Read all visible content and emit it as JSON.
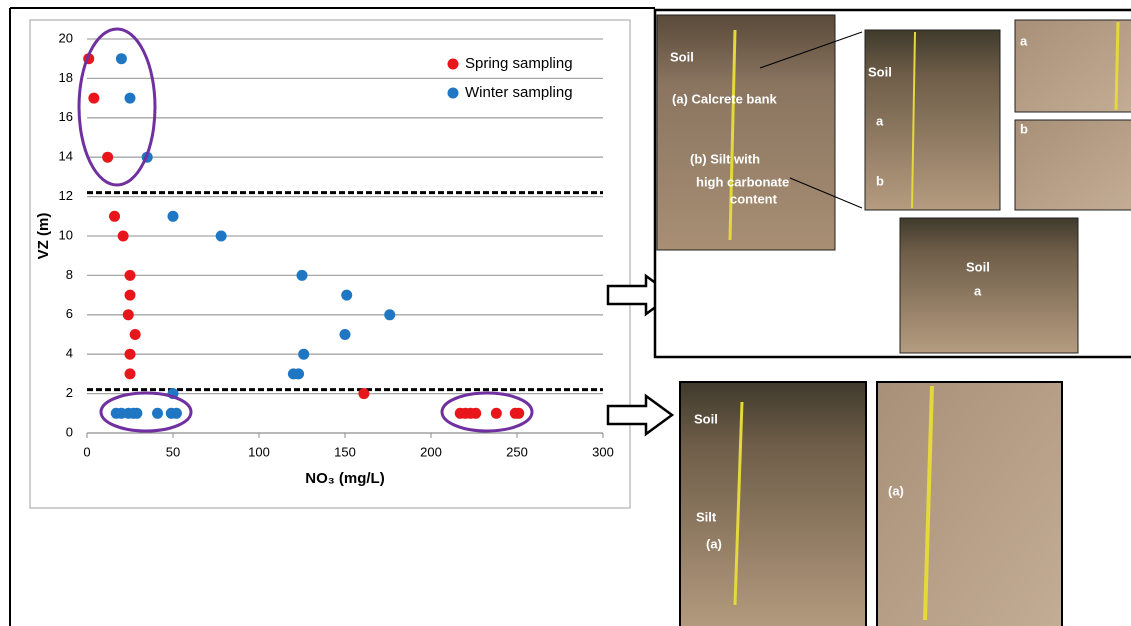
{
  "chart_data": {
    "type": "scatter",
    "xlabel": "NO₃ (mg/L)",
    "ylabel": "VZ (m)",
    "xlim": [
      0,
      300
    ],
    "xticks": [
      0,
      50,
      100,
      150,
      200,
      250,
      300
    ],
    "ylim": [
      0,
      20
    ],
    "yticks": [
      0,
      2,
      4,
      6,
      8,
      10,
      12,
      14,
      16,
      18,
      20
    ],
    "grid": true,
    "legend": "upper right",
    "thresholds": [
      12.2,
      2.2
    ],
    "series": [
      {
        "name": "Spring sampling",
        "color": "#e8161b",
        "x": [
          1,
          4,
          12,
          16,
          21,
          25,
          25,
          24,
          28,
          25,
          25,
          161,
          217,
          220,
          223,
          226,
          238,
          249,
          251
        ],
        "y": [
          19,
          17,
          14,
          11,
          10,
          8,
          7,
          6,
          5,
          4,
          3,
          2,
          1,
          1,
          1,
          1,
          1,
          1,
          1
        ]
      },
      {
        "name": "Winter sampling",
        "color": "#1f77c4",
        "x": [
          20,
          25,
          35,
          50,
          78,
          125,
          151,
          176,
          150,
          126,
          120,
          123,
          50,
          17,
          20,
          24,
          27,
          29,
          41,
          49,
          52
        ],
        "y": [
          19,
          17,
          14,
          11,
          10,
          8,
          7,
          6,
          5,
          4,
          3,
          3,
          2,
          1,
          1,
          1,
          1,
          1,
          1,
          1,
          1
        ]
      }
    ]
  },
  "photos": [
    {
      "labels": [
        "Soil",
        "(a) Calcrete bank",
        "(b) Silt with",
        "high carbonate",
        "content"
      ]
    },
    {
      "labels": [
        "Soil",
        "a",
        "b"
      ]
    },
    {
      "labels": [
        "a"
      ]
    },
    {
      "labels": [
        "b"
      ]
    },
    {
      "labels": [
        "Soil",
        "a"
      ]
    },
    {
      "labels": [
        "Soil",
        "Silt",
        "(a)"
      ]
    },
    {
      "labels": [
        "(a)"
      ]
    }
  ]
}
